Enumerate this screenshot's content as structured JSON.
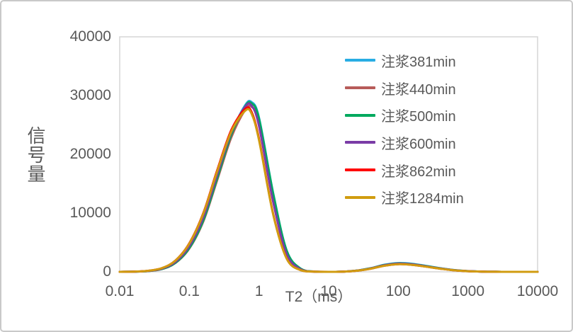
{
  "frame": {
    "background": "#ffffff",
    "border_color": "#c9c9c9"
  },
  "colors": {
    "text": "#595959",
    "axis_line": "#d6d6d6"
  },
  "chart_data": {
    "type": "line",
    "title": "",
    "legend_position": "inside-right-top",
    "grid": false,
    "x_axis": {
      "label": "T2（ms）",
      "scale": "log",
      "range": [
        0.01,
        10000
      ],
      "ticks": [
        0.01,
        0.1,
        1,
        10,
        100,
        1000,
        10000
      ],
      "tick_labels": [
        "0.01",
        "0.1",
        "1",
        "10",
        "100",
        "1000",
        "10000"
      ]
    },
    "y_axis": {
      "label": "信号量",
      "scale": "linear",
      "range": [
        0,
        40000
      ],
      "ticks": [
        0,
        10000,
        20000,
        30000,
        40000
      ],
      "tick_labels": [
        "0",
        "10000",
        "20000",
        "30000",
        "40000"
      ]
    },
    "x": [
      0.01,
      0.016,
      0.025,
      0.04,
      0.063,
      0.1,
      0.16,
      0.25,
      0.4,
      0.63,
      0.78,
      1,
      1.6,
      2.5,
      4,
      6.3,
      10,
      16,
      25,
      40,
      63,
      100,
      160,
      250,
      400,
      630,
      1000,
      1600,
      2500,
      4000,
      6300,
      10000
    ],
    "series": [
      {
        "name": "注浆381min",
        "color": "#28ADE3",
        "values": [
          0,
          30,
          120,
          470,
          1540,
          4090,
          8930,
          15980,
          23500,
          28320,
          28900,
          26240,
          13400,
          3610,
          510,
          40,
          0,
          40,
          200,
          620,
          1200,
          1500,
          1360,
          1010,
          620,
          310,
          130,
          40,
          10,
          0,
          0,
          0
        ]
      },
      {
        "name": "注浆440min",
        "color": "#B75B59",
        "values": [
          0,
          30,
          120,
          460,
          1500,
          3970,
          8680,
          15540,
          22850,
          27540,
          28100,
          25510,
          13020,
          3510,
          500,
          40,
          0,
          40,
          180,
          560,
          1080,
          1350,
          1220,
          910,
          560,
          280,
          110,
          40,
          10,
          0,
          0,
          0
        ]
      },
      {
        "name": "注浆500min",
        "color": "#00A95E",
        "values": [
          0,
          30,
          120,
          470,
          1530,
          4060,
          8870,
          15870,
          23330,
          28130,
          28700,
          26060,
          13300,
          3580,
          510,
          40,
          0,
          40,
          200,
          600,
          1160,
          1450,
          1310,
          980,
          600,
          300,
          120,
          40,
          10,
          0,
          0,
          0
        ]
      },
      {
        "name": "注浆600min",
        "color": "#7A3CA6",
        "values": [
          0,
          30,
          140,
          530,
          1680,
          4380,
          9380,
          16460,
          23720,
          28060,
          28310,
          24810,
          11890,
          3000,
          400,
          30,
          0,
          40,
          190,
          580,
          1120,
          1400,
          1270,
          940,
          580,
          290,
          120,
          40,
          10,
          0,
          0,
          0
        ]
      },
      {
        "name": "注浆862min",
        "color": "#FF0000",
        "values": [
          0,
          40,
          170,
          620,
          1910,
          4870,
          10120,
          17240,
          24120,
          27690,
          27240,
          22660,
          9860,
          2260,
          270,
          20,
          0,
          40,
          180,
          530,
          1040,
          1300,
          1180,
          880,
          530,
          270,
          110,
          40,
          10,
          0,
          0,
          0
        ]
      },
      {
        "name": "注浆1284min",
        "color": "#D09C10",
        "values": [
          0,
          40,
          170,
          620,
          1890,
          4810,
          10010,
          17050,
          23860,
          27390,
          26950,
          22410,
          9750,
          2240,
          270,
          20,
          0,
          40,
          180,
          530,
          1040,
          1300,
          1180,
          880,
          530,
          270,
          110,
          40,
          10,
          0,
          0,
          0
        ]
      }
    ]
  }
}
